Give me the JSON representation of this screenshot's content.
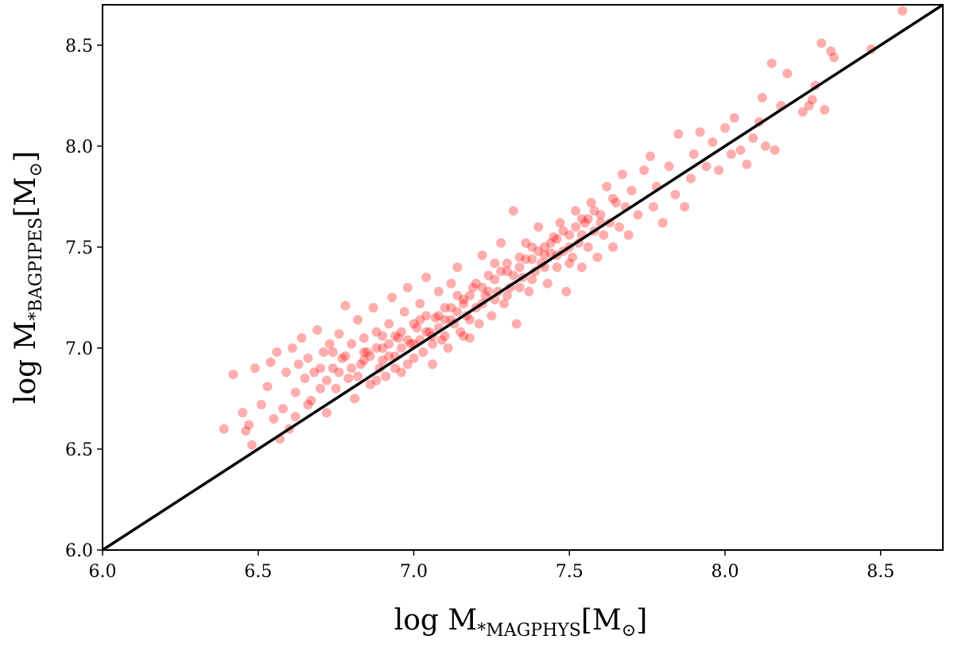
{
  "chart_data": {
    "type": "scatter",
    "title": "",
    "xlabel": "log M*MAGPHYS[M⊙]",
    "ylabel": "log M*BAGPIPES[M⊙]",
    "xlabel_parts": {
      "main": "log M",
      "sub": "*MAGPHYS",
      "bracket_open": "[M",
      "sun": "⊙",
      "bracket_close": "]"
    },
    "ylabel_parts": {
      "main": "log M",
      "sub": "*BAGPIPES",
      "bracket_open": "[M",
      "sun": "⊙",
      "bracket_close": "]"
    },
    "xlim": [
      6.0,
      8.7
    ],
    "ylim": [
      6.0,
      8.7
    ],
    "xticks": [
      "6.0",
      "6.5",
      "7.0",
      "7.5",
      "8.0",
      "8.5"
    ],
    "yticks": [
      "6.0",
      "6.5",
      "7.0",
      "7.5",
      "8.0",
      "8.5"
    ],
    "grid": false,
    "marker_color": "#ff0000",
    "marker_alpha": 0.32,
    "reference_line": {
      "label": "1:1",
      "color": "#000000",
      "from": [
        6.0,
        6.0
      ],
      "to": [
        8.7,
        8.7
      ]
    },
    "series": [
      {
        "points": [
          [
            6.39,
            6.6
          ],
          [
            6.42,
            6.87
          ],
          [
            6.45,
            6.68
          ],
          [
            6.46,
            6.59
          ],
          [
            6.47,
            6.62
          ],
          [
            6.48,
            6.52
          ],
          [
            6.49,
            6.9
          ],
          [
            6.51,
            6.72
          ],
          [
            6.53,
            6.81
          ],
          [
            6.54,
            6.93
          ],
          [
            6.55,
            6.65
          ],
          [
            6.56,
            6.98
          ],
          [
            6.57,
            6.55
          ],
          [
            6.58,
            6.7
          ],
          [
            6.59,
            6.88
          ],
          [
            6.6,
            6.6
          ],
          [
            6.61,
            7.0
          ],
          [
            6.62,
            6.78
          ],
          [
            6.63,
            6.92
          ],
          [
            6.64,
            7.05
          ],
          [
            6.65,
            6.85
          ],
          [
            6.66,
            6.95
          ],
          [
            6.67,
            6.74
          ],
          [
            6.68,
            6.88
          ],
          [
            6.69,
            7.09
          ],
          [
            6.7,
            6.8
          ],
          [
            6.71,
            6.98
          ],
          [
            6.72,
            6.68
          ],
          [
            6.73,
            7.02
          ],
          [
            6.74,
            6.9
          ],
          [
            6.75,
            6.8
          ],
          [
            6.76,
            7.07
          ],
          [
            6.77,
            6.95
          ],
          [
            6.78,
            7.21
          ],
          [
            6.79,
            6.85
          ],
          [
            6.8,
            7.02
          ],
          [
            6.81,
            6.75
          ],
          [
            6.82,
            7.14
          ],
          [
            6.83,
            6.92
          ],
          [
            6.84,
            7.05
          ],
          [
            6.85,
            6.98
          ],
          [
            6.86,
            6.82
          ],
          [
            6.87,
            7.2
          ],
          [
            6.88,
            7.08
          ],
          [
            6.89,
            6.9
          ],
          [
            6.9,
            7.0
          ],
          [
            6.91,
            6.86
          ],
          [
            6.92,
            7.12
          ],
          [
            6.93,
            7.25
          ],
          [
            6.94,
            6.96
          ],
          [
            6.95,
            7.05
          ],
          [
            6.96,
            6.88
          ],
          [
            6.97,
            7.18
          ],
          [
            6.98,
            7.3
          ],
          [
            6.99,
            7.02
          ],
          [
            7.0,
            6.95
          ],
          [
            7.01,
            7.1
          ],
          [
            7.02,
            7.22
          ],
          [
            7.03,
            6.98
          ],
          [
            7.04,
            7.35
          ],
          [
            7.05,
            7.08
          ],
          [
            7.06,
            6.92
          ],
          [
            7.07,
            7.15
          ],
          [
            7.08,
            7.28
          ],
          [
            7.09,
            7.04
          ],
          [
            7.1,
            7.2
          ],
          [
            7.11,
            7.0
          ],
          [
            7.12,
            7.32
          ],
          [
            7.13,
            7.12
          ],
          [
            7.14,
            7.4
          ],
          [
            7.15,
            7.08
          ],
          [
            7.16,
            7.24
          ],
          [
            7.17,
            7.16
          ],
          [
            7.18,
            7.05
          ],
          [
            7.19,
            7.3
          ],
          [
            7.2,
            7.2
          ],
          [
            7.21,
            7.12
          ],
          [
            7.22,
            7.46
          ],
          [
            7.23,
            7.26
          ],
          [
            7.24,
            7.36
          ],
          [
            7.25,
            7.16
          ],
          [
            7.26,
            7.42
          ],
          [
            7.27,
            7.28
          ],
          [
            7.28,
            7.52
          ],
          [
            7.29,
            7.22
          ],
          [
            7.3,
            7.38
          ],
          [
            7.31,
            7.3
          ],
          [
            7.32,
            7.68
          ],
          [
            7.33,
            7.12
          ],
          [
            7.34,
            7.45
          ],
          [
            7.35,
            7.35
          ],
          [
            7.36,
            7.52
          ],
          [
            7.37,
            7.28
          ],
          [
            7.38,
            7.44
          ],
          [
            7.39,
            7.38
          ],
          [
            7.4,
            7.6
          ],
          [
            7.41,
            7.42
          ],
          [
            7.42,
            7.5
          ],
          [
            7.43,
            7.32
          ],
          [
            7.44,
            7.47
          ],
          [
            7.45,
            7.55
          ],
          [
            7.46,
            7.4
          ],
          [
            7.47,
            7.62
          ],
          [
            7.48,
            7.48
          ],
          [
            7.49,
            7.28
          ],
          [
            7.5,
            7.56
          ],
          [
            7.51,
            7.45
          ],
          [
            7.52,
            7.68
          ],
          [
            7.53,
            7.52
          ],
          [
            7.54,
            7.4
          ],
          [
            7.55,
            7.62
          ],
          [
            7.56,
            7.5
          ],
          [
            7.57,
            7.72
          ],
          [
            7.58,
            7.58
          ],
          [
            7.59,
            7.45
          ],
          [
            7.6,
            7.66
          ],
          [
            7.61,
            7.56
          ],
          [
            7.62,
            7.8
          ],
          [
            7.63,
            7.62
          ],
          [
            7.64,
            7.5
          ],
          [
            7.65,
            7.72
          ],
          [
            7.66,
            7.6
          ],
          [
            7.67,
            7.86
          ],
          [
            7.68,
            7.7
          ],
          [
            7.69,
            7.56
          ],
          [
            7.7,
            7.78
          ],
          [
            7.72,
            7.66
          ],
          [
            7.74,
            7.88
          ],
          [
            7.76,
            7.95
          ],
          [
            7.77,
            7.7
          ],
          [
            7.78,
            7.8
          ],
          [
            7.8,
            7.62
          ],
          [
            7.82,
            7.9
          ],
          [
            7.84,
            7.76
          ],
          [
            7.85,
            8.06
          ],
          [
            7.87,
            7.7
          ],
          [
            7.89,
            7.84
          ],
          [
            7.9,
            7.96
          ],
          [
            7.92,
            8.07
          ],
          [
            7.94,
            7.9
          ],
          [
            7.96,
            8.02
          ],
          [
            7.98,
            7.88
          ],
          [
            8.0,
            8.09
          ],
          [
            8.02,
            7.96
          ],
          [
            8.03,
            8.14
          ],
          [
            8.05,
            7.98
          ],
          [
            8.07,
            7.91
          ],
          [
            8.09,
            8.04
          ],
          [
            8.11,
            8.12
          ],
          [
            8.12,
            8.24
          ],
          [
            8.13,
            8.0
          ],
          [
            8.15,
            8.41
          ],
          [
            8.16,
            7.98
          ],
          [
            8.18,
            8.2
          ],
          [
            8.2,
            8.36
          ],
          [
            8.25,
            8.17
          ],
          [
            8.27,
            8.2
          ],
          [
            8.28,
            8.23
          ],
          [
            8.29,
            8.3
          ],
          [
            8.31,
            8.51
          ],
          [
            8.32,
            8.18
          ],
          [
            8.34,
            8.47
          ],
          [
            8.35,
            8.44
          ],
          [
            8.47,
            8.48
          ],
          [
            8.57,
            8.67
          ],
          [
            6.62,
            6.66
          ],
          [
            6.66,
            6.72
          ],
          [
            6.7,
            6.9
          ],
          [
            6.74,
            6.98
          ],
          [
            6.78,
            6.96
          ],
          [
            6.82,
            6.86
          ],
          [
            6.86,
            6.96
          ],
          [
            6.88,
            6.84
          ],
          [
            6.9,
            6.94
          ],
          [
            6.92,
            7.02
          ],
          [
            6.94,
            7.06
          ],
          [
            6.96,
            7.0
          ],
          [
            6.98,
            6.92
          ],
          [
            7.0,
            7.12
          ],
          [
            7.02,
            7.04
          ],
          [
            7.04,
            7.16
          ],
          [
            7.06,
            7.06
          ],
          [
            7.08,
            7.1
          ],
          [
            7.1,
            7.14
          ],
          [
            7.12,
            7.2
          ],
          [
            7.14,
            7.18
          ],
          [
            7.16,
            7.06
          ],
          [
            7.18,
            7.26
          ],
          [
            7.2,
            7.32
          ],
          [
            7.22,
            7.22
          ],
          [
            7.24,
            7.28
          ],
          [
            7.26,
            7.34
          ],
          [
            7.28,
            7.38
          ],
          [
            7.3,
            7.26
          ],
          [
            7.32,
            7.36
          ],
          [
            7.34,
            7.4
          ],
          [
            7.36,
            7.44
          ],
          [
            7.38,
            7.34
          ],
          [
            7.4,
            7.48
          ],
          [
            7.42,
            7.4
          ],
          [
            7.44,
            7.52
          ],
          [
            7.46,
            7.46
          ],
          [
            7.48,
            7.58
          ],
          [
            7.5,
            7.5
          ],
          [
            7.52,
            7.6
          ],
          [
            7.54,
            7.56
          ],
          [
            7.56,
            7.64
          ],
          [
            7.58,
            7.68
          ],
          [
            7.6,
            7.62
          ],
          [
            7.64,
            7.74
          ],
          [
            6.8,
            6.9
          ],
          [
            6.84,
            6.98
          ],
          [
            6.88,
            7.0
          ],
          [
            6.92,
            6.96
          ],
          [
            6.96,
            7.08
          ],
          [
            7.0,
            7.02
          ],
          [
            7.04,
            7.08
          ],
          [
            7.08,
            7.16
          ],
          [
            7.12,
            7.14
          ],
          [
            7.16,
            7.22
          ],
          [
            6.72,
            6.84
          ],
          [
            6.76,
            6.88
          ],
          [
            6.84,
            6.94
          ],
          [
            6.9,
            7.06
          ],
          [
            6.94,
            6.9
          ],
          [
            6.98,
            7.04
          ],
          [
            7.02,
            7.14
          ],
          [
            7.06,
            7.02
          ],
          [
            7.1,
            7.06
          ],
          [
            7.14,
            7.26
          ],
          [
            7.18,
            7.14
          ],
          [
            7.22,
            7.3
          ],
          [
            7.26,
            7.24
          ],
          [
            7.3,
            7.42
          ],
          [
            7.34,
            7.3
          ],
          [
            7.38,
            7.5
          ],
          [
            7.42,
            7.46
          ],
          [
            7.46,
            7.54
          ],
          [
            7.5,
            7.42
          ],
          [
            7.54,
            7.64
          ]
        ]
      }
    ]
  }
}
